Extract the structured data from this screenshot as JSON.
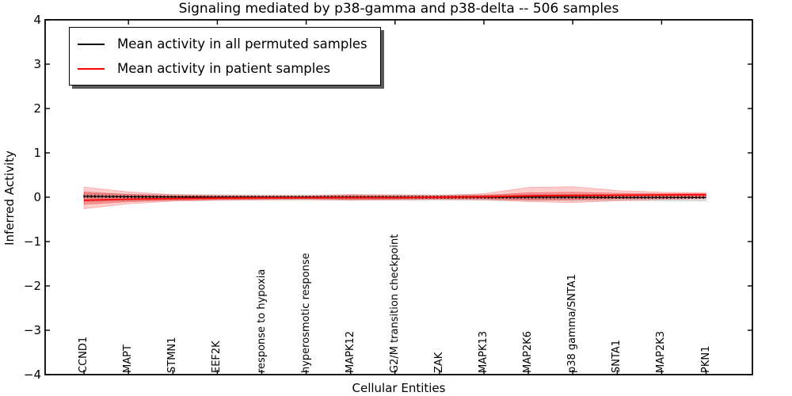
{
  "figure": {
    "title": "Signaling mediated by p38-gamma and p38-delta -- 506 samples",
    "xlabel": "Cellular Entities",
    "ylabel": "Inferred Activity",
    "legend": [
      {
        "label": "Mean activity in all permuted samples",
        "color": "#000000"
      },
      {
        "label": "Mean activity in patient samples",
        "color": "#ff0000"
      }
    ]
  },
  "chart_data": {
    "type": "line",
    "title": "Signaling mediated by p38-gamma and p38-delta -- 506 samples",
    "xlabel": "Cellular Entities",
    "ylabel": "Inferred Activity",
    "xlim": [
      0,
      16
    ],
    "ylim": [
      -4,
      4
    ],
    "yticks": [
      4,
      3,
      2,
      1,
      0,
      -1,
      -2,
      -3,
      -4
    ],
    "ytick_labels": [
      "4",
      "3",
      "2",
      "1",
      "0",
      "−1",
      "−2",
      "−3",
      "−4"
    ],
    "xticks_top": [
      2,
      4,
      6,
      8,
      10,
      12,
      14
    ],
    "grid": false,
    "legend_position": "upper left",
    "categories": [
      "CCND1",
      "MAPT",
      "STMN1",
      "EEF2K",
      "response to hypoxia",
      "hyperosmotic response",
      "MAPK12",
      "G2/M transition checkpoint",
      "ZAK",
      "MAPK13",
      "MAP2K6",
      "p38 gamma/SNTA1",
      "SNTA1",
      "MAP2K3",
      "PKN1"
    ],
    "x_positions": [
      1,
      2,
      3,
      4,
      5,
      6,
      7,
      8,
      9,
      10,
      11,
      12,
      13,
      14,
      15
    ],
    "series": [
      {
        "name": "Mean activity in all permuted samples",
        "color": "#000000",
        "style": "solid-with-tick-markers",
        "values": [
          0.02,
          0.01,
          0.005,
          0.0,
          0.0,
          0.0,
          0.0,
          0.0,
          0.0,
          0.0,
          0.0,
          0.0,
          -0.005,
          -0.005,
          -0.005
        ]
      },
      {
        "name": "Mean activity in patient samples",
        "color": "#ff0000",
        "style": "solid",
        "values": [
          -0.07,
          -0.045,
          -0.03,
          -0.02,
          -0.015,
          -0.01,
          -0.01,
          -0.01,
          0.0,
          0.01,
          0.03,
          0.04,
          0.045,
          0.05,
          0.055
        ]
      }
    ],
    "bands": [
      {
        "name": "permuted-samples-band",
        "fill": "rgba(130,130,130,0.28)",
        "stroke": "rgba(120,120,120,0.25)",
        "upper": [
          0.09,
          0.07,
          0.06,
          0.055,
          0.05,
          0.05,
          0.055,
          0.055,
          0.05,
          0.055,
          0.06,
          0.065,
          0.06,
          0.06,
          0.065
        ],
        "lower": [
          -0.1,
          -0.08,
          -0.07,
          -0.065,
          -0.06,
          -0.06,
          -0.065,
          -0.06,
          -0.06,
          -0.065,
          -0.07,
          -0.075,
          -0.07,
          -0.075,
          -0.08
        ]
      },
      {
        "name": "patient-samples-outer-band",
        "fill": "rgba(255,0,0,0.20)",
        "stroke": "rgba(230,0,0,0.25)",
        "upper": [
          0.23,
          0.12,
          0.06,
          0.04,
          0.035,
          0.03,
          0.06,
          0.05,
          0.04,
          0.08,
          0.22,
          0.24,
          0.15,
          0.11,
          0.1
        ],
        "lower": [
          -0.26,
          -0.15,
          -0.09,
          -0.07,
          -0.06,
          -0.05,
          -0.07,
          -0.06,
          -0.05,
          -0.06,
          -0.1,
          -0.12,
          -0.08,
          -0.05,
          -0.03
        ]
      },
      {
        "name": "patient-samples-inner-band",
        "fill": "rgba(230,30,30,0.30)",
        "stroke": "rgba(255,0,0,0.35)",
        "upper": [
          0.12,
          0.06,
          0.03,
          0.02,
          0.015,
          0.012,
          0.03,
          0.02,
          0.02,
          0.04,
          0.1,
          0.11,
          0.09,
          0.08,
          0.08
        ],
        "lower": [
          -0.16,
          -0.1,
          -0.07,
          -0.05,
          -0.04,
          -0.03,
          -0.045,
          -0.04,
          -0.03,
          -0.03,
          -0.06,
          -0.05,
          -0.03,
          -0.02,
          -0.01
        ]
      }
    ]
  },
  "colors": {
    "patient": "#ff0000",
    "permuted": "#000000",
    "background": "#ffffff"
  }
}
